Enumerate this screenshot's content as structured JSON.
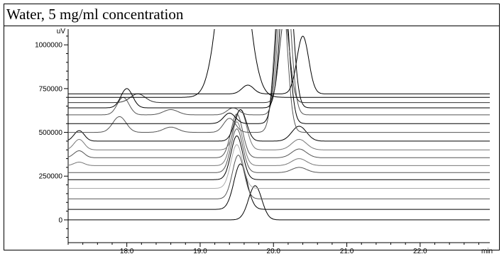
{
  "header": {
    "title": "Water, 5 mg/ml concentration"
  },
  "chart_data": {
    "type": "line",
    "title": "Water, 5 mg/ml concentration",
    "xlabel": "min",
    "ylabel": "uV",
    "xlim": [
      17.2,
      22.95
    ],
    "ylim": [
      -130000,
      1090000
    ],
    "x_ticks": [
      18.0,
      19.0,
      20.0,
      21.0,
      22.0
    ],
    "x_tick_labels": [
      "18.0",
      "19.0",
      "20.0",
      "21.0",
      "22.0"
    ],
    "x_unit_label": "min",
    "y_ticks": [
      0,
      250000,
      500000,
      750000,
      1000000
    ],
    "y_tick_labels": [
      "0",
      "250000",
      "500000",
      "750000",
      "1000000"
    ],
    "y_unit_label": "uV",
    "grid": false,
    "legend": "none",
    "series": [
      {
        "baseline": 0,
        "color": "#000000",
        "peaks": [
          [
            19.75,
            195000,
            0.09
          ]
        ]
      },
      {
        "baseline": 60000,
        "color": "#000000",
        "peaks": [
          [
            19.55,
            260000,
            0.09
          ]
        ]
      },
      {
        "baseline": 120000,
        "color": "#555555",
        "peaks": [
          [
            19.52,
            250000,
            0.08
          ]
        ]
      },
      {
        "baseline": 180000,
        "color": "#aaaaaa",
        "peaks": [
          [
            19.5,
            250000,
            0.08
          ]
        ]
      },
      {
        "baseline": 230000,
        "color": "#000000",
        "peaks": [
          [
            19.5,
            250000,
            0.08
          ]
        ]
      },
      {
        "baseline": 270000,
        "color": "#555555",
        "peaks": [
          [
            19.5,
            250000,
            0.08
          ],
          [
            20.35,
            30000,
            0.1
          ]
        ]
      },
      {
        "baseline": 310000,
        "color": "#777777",
        "peaks": [
          [
            17.35,
            20000,
            0.07
          ],
          [
            19.5,
            250000,
            0.08
          ],
          [
            20.35,
            40000,
            0.1
          ]
        ]
      },
      {
        "baseline": 355000,
        "color": "#555555",
        "peaks": [
          [
            17.35,
            40000,
            0.07
          ],
          [
            19.5,
            250000,
            0.08
          ],
          [
            20.35,
            50000,
            0.1
          ]
        ]
      },
      {
        "baseline": 400000,
        "color": "#777777",
        "peaks": [
          [
            17.35,
            60000,
            0.07
          ],
          [
            19.55,
            230000,
            0.08
          ],
          [
            20.35,
            60000,
            0.1
          ]
        ]
      },
      {
        "baseline": 450000,
        "color": "#000000",
        "peaks": [
          [
            17.35,
            60000,
            0.07
          ],
          [
            19.55,
            180000,
            0.08
          ],
          [
            20.35,
            85000,
            0.1
          ]
        ]
      },
      {
        "baseline": 500000,
        "color": "#555555",
        "peaks": [
          [
            17.9,
            90000,
            0.09
          ],
          [
            18.6,
            30000,
            0.1
          ],
          [
            19.4,
            80000,
            0.08
          ],
          [
            20.1,
            900000,
            0.08
          ]
        ]
      },
      {
        "baseline": 550000,
        "color": "#000000",
        "peaks": [
          [
            19.4,
            60000,
            0.08
          ],
          [
            20.12,
            900000,
            0.08
          ]
        ]
      },
      {
        "baseline": 600000,
        "color": "#555555",
        "peaks": [
          [
            17.95,
            100000,
            0.08
          ],
          [
            18.6,
            30000,
            0.1
          ],
          [
            19.45,
            40000,
            0.08
          ],
          [
            20.15,
            900000,
            0.08
          ]
        ]
      },
      {
        "baseline": 640000,
        "color": "#000000",
        "peaks": [
          [
            18.0,
            110000,
            0.08
          ],
          [
            20.18,
            900000,
            0.08
          ]
        ]
      },
      {
        "baseline": 670000,
        "color": "#333333",
        "peaks": [
          [
            18.15,
            50000,
            0.1
          ],
          [
            20.15,
            480000,
            0.07
          ]
        ]
      },
      {
        "baseline": 720000,
        "color": "#000000",
        "peaks": [
          [
            19.65,
            50000,
            0.08
          ],
          [
            20.4,
            330000,
            0.08
          ]
        ]
      },
      {
        "baseline": 700000,
        "color": "#000000",
        "peaks": [
          [
            19.45,
            1200000,
            0.17
          ]
        ]
      }
    ]
  }
}
